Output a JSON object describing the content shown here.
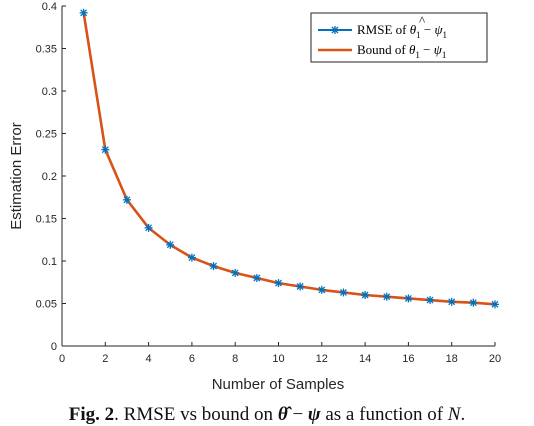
{
  "chart_data": {
    "type": "line",
    "xlabel": "Number of Samples",
    "ylabel": "Estimation Error",
    "xlim": [
      0,
      20
    ],
    "ylim": [
      0,
      0.4
    ],
    "xticks": [
      "0",
      "2",
      "4",
      "6",
      "8",
      "10",
      "12",
      "14",
      "16",
      "18",
      "20"
    ],
    "yticks": [
      "0",
      "0.05",
      "0.1",
      "0.15",
      "0.2",
      "0.25",
      "0.3",
      "0.35",
      "0.4"
    ],
    "grid": false,
    "legend_position": "top-right",
    "x": [
      1,
      2,
      3,
      4,
      5,
      6,
      7,
      8,
      9,
      10,
      11,
      12,
      13,
      14,
      15,
      16,
      17,
      18,
      19,
      20
    ],
    "series": [
      {
        "name": "RMSE of θ̂1 − ψ1",
        "color": "#0072BD",
        "marker": "asterisk",
        "values": [
          0.392,
          0.231,
          0.172,
          0.139,
          0.119,
          0.104,
          0.094,
          0.086,
          0.08,
          0.074,
          0.07,
          0.066,
          0.063,
          0.06,
          0.058,
          0.056,
          0.054,
          0.052,
          0.051,
          0.049
        ]
      },
      {
        "name": "Bound of θ1 − ψ1",
        "color": "#D95319",
        "marker": "none",
        "values": [
          0.392,
          0.231,
          0.172,
          0.139,
          0.119,
          0.104,
          0.094,
          0.086,
          0.08,
          0.074,
          0.07,
          0.066,
          0.063,
          0.06,
          0.058,
          0.056,
          0.054,
          0.052,
          0.051,
          0.049
        ]
      }
    ]
  },
  "legend": {
    "rmse": {
      "prefix": "RMSE of ",
      "theta": "θ",
      "hat": "^",
      "sub1": "1",
      "minus": " − ",
      "psi": "ψ",
      "sub2": "1"
    },
    "bound": {
      "prefix": "Bound of ",
      "theta": "θ",
      "sub1": "1",
      "minus": " − ",
      "psi": "ψ",
      "sub2": "1"
    }
  },
  "caption": {
    "label": "Fig. 2",
    "text1": ". RMSE vs bound on ",
    "theta": "θ̂",
    "minus": " − ",
    "psi": "ψ",
    "text2": " as a function of ",
    "n": "N",
    "end": "."
  }
}
